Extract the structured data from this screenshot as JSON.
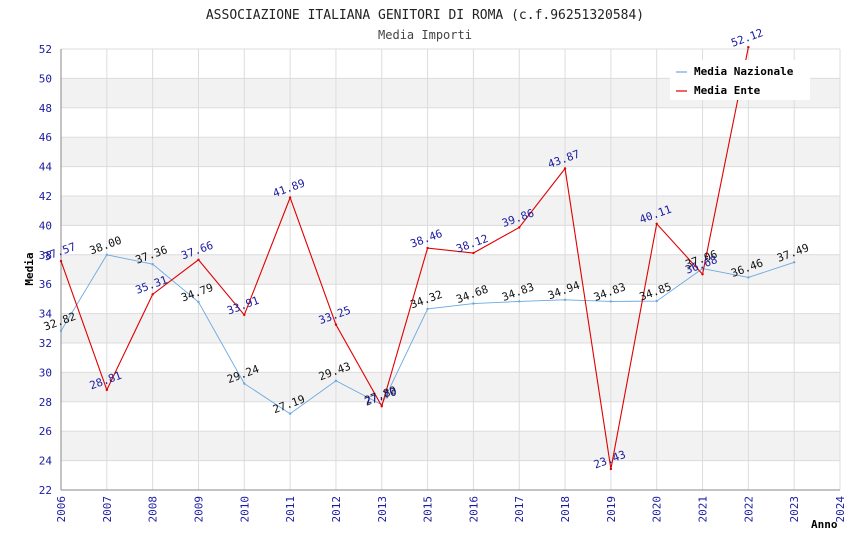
{
  "chart_data": {
    "type": "line",
    "title": "ASSOCIAZIONE ITALIANA GENITORI DI ROMA (c.f.96251320584)",
    "subtitle": "Media Importi",
    "xlabel": "Anno",
    "ylabel": "Media",
    "ylim": [
      22,
      52
    ],
    "y_ticks": [
      "22",
      "24",
      "26",
      "28",
      "30",
      "32",
      "34",
      "36",
      "38",
      "40",
      "42",
      "44",
      "46",
      "48",
      "50",
      "52"
    ],
    "categories": [
      "2006",
      "2007",
      "2008",
      "2009",
      "2010",
      "2011",
      "2012",
      "2013",
      "2015",
      "2016",
      "2017",
      "2018",
      "2019",
      "2020",
      "2021",
      "2022",
      "2023",
      "2024"
    ],
    "legend_position": "top-right",
    "series": [
      {
        "name": "Media Nazionale",
        "color": "#6aa8e0",
        "values": [
          32.82,
          38.0,
          37.36,
          34.79,
          29.24,
          27.19,
          29.43,
          27.8,
          34.32,
          34.68,
          34.83,
          34.94,
          34.83,
          34.85,
          37.06,
          36.46,
          37.49,
          null
        ],
        "labels": [
          "32.82",
          "38.00",
          "37.36",
          "34.79",
          "29.24",
          "27.19",
          "29.43",
          "27.80",
          "34.32",
          "34.68",
          "34.83",
          "34.94",
          "34.83",
          "34.85",
          "37.06",
          "36.46",
          "37.49",
          ""
        ]
      },
      {
        "name": "Media Ente",
        "color": "#e00000",
        "values": [
          37.57,
          28.81,
          35.31,
          37.66,
          33.91,
          41.89,
          33.25,
          27.7,
          38.46,
          38.12,
          39.86,
          43.87,
          23.43,
          40.11,
          36.68,
          52.12,
          null,
          null
        ],
        "labels": [
          "37.57",
          "28.81",
          "35.31",
          "37.66",
          "33.91",
          "41.89",
          "33.25",
          "27.70",
          "38.46",
          "38.12",
          "39.86",
          "43.87",
          "23.43",
          "40.11",
          "36.68",
          "52.12",
          "",
          ""
        ]
      }
    ]
  }
}
